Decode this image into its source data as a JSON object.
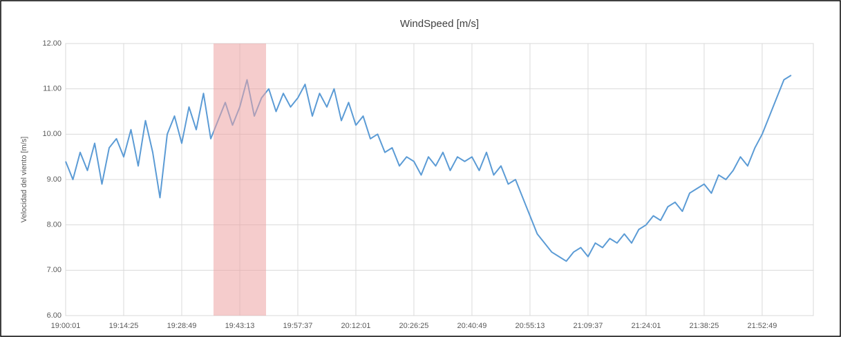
{
  "chart_data": {
    "type": "line",
    "title": "WindSpeed [m/s]",
    "y_label": "Velocidad del viento [m/s]",
    "x": [
      68401,
      68509,
      68617,
      68725,
      68833,
      68941,
      69049,
      69157,
      69265,
      69373,
      69481,
      69589,
      69697,
      69805,
      69913,
      70021,
      70129,
      70237,
      70345,
      70453,
      70561,
      70669,
      70777,
      70885,
      70993,
      71101,
      71209,
      71317,
      71425,
      71533,
      71641,
      71749,
      71857,
      71965,
      72073,
      72181,
      72289,
      72397,
      72505,
      72613,
      72721,
      72829,
      72937,
      73045,
      73153,
      73261,
      73369,
      73477,
      73585,
      73693,
      73801,
      73909,
      74017,
      74125,
      74233,
      74341,
      74449,
      74557,
      74665,
      74773,
      74881,
      74989,
      75097,
      75205,
      75313,
      75421,
      75529,
      75637,
      75745,
      75853,
      75961,
      76069,
      76177,
      76285,
      76393,
      76501,
      76609,
      76717,
      76825,
      76933,
      77041,
      77149,
      77257,
      77365,
      77473,
      77581,
      77689,
      77797,
      77905,
      78013,
      78121,
      78229,
      78337,
      78445,
      78553,
      78661,
      78769,
      78877,
      78985,
      79093,
      79201
    ],
    "series": [
      {
        "name": "WindSpeed",
        "color": "#5b9bd5",
        "values": [
          9.4,
          9.0,
          9.6,
          9.2,
          9.8,
          8.9,
          9.7,
          9.9,
          9.5,
          10.1,
          9.3,
          10.3,
          9.6,
          8.6,
          10.0,
          10.4,
          9.8,
          10.6,
          10.1,
          10.9,
          9.9,
          10.3,
          10.7,
          10.2,
          10.6,
          11.2,
          10.4,
          10.8,
          11.0,
          10.5,
          10.9,
          10.6,
          10.8,
          11.1,
          10.4,
          10.9,
          10.6,
          11.0,
          10.3,
          10.7,
          10.2,
          10.4,
          9.9,
          10.0,
          9.6,
          9.7,
          9.3,
          9.5,
          9.4,
          9.1,
          9.5,
          9.3,
          9.6,
          9.2,
          9.5,
          9.4,
          9.5,
          9.2,
          9.6,
          9.1,
          9.3,
          8.9,
          9.0,
          8.6,
          8.2,
          7.8,
          7.6,
          7.4,
          7.3,
          7.2,
          7.4,
          7.5,
          7.3,
          7.6,
          7.5,
          7.7,
          7.6,
          7.8,
          7.6,
          7.9,
          8.0,
          8.2,
          8.1,
          8.4,
          8.5,
          8.3,
          8.7,
          8.8,
          8.9,
          8.7,
          9.1,
          9.0,
          9.2,
          9.5,
          9.3,
          9.7,
          10.0,
          10.4,
          10.8,
          11.2,
          11.3
        ]
      }
    ],
    "xlim": [
      68401,
      79531
    ],
    "xticks": [
      {
        "value": 68401,
        "label": "19:00:01"
      },
      {
        "value": 69265,
        "label": "19:14:25"
      },
      {
        "value": 70129,
        "label": "19:28:49"
      },
      {
        "value": 70993,
        "label": "19:43:13"
      },
      {
        "value": 71857,
        "label": "19:57:37"
      },
      {
        "value": 72721,
        "label": "20:12:01"
      },
      {
        "value": 73585,
        "label": "20:26:25"
      },
      {
        "value": 74449,
        "label": "20:40:49"
      },
      {
        "value": 75313,
        "label": "20:55:13"
      },
      {
        "value": 76177,
        "label": "21:09:37"
      },
      {
        "value": 77041,
        "label": "21:24:01"
      },
      {
        "value": 77905,
        "label": "21:38:25"
      },
      {
        "value": 78769,
        "label": "21:52:49"
      }
    ],
    "ylim": [
      6,
      12
    ],
    "yticks": [
      {
        "value": 6,
        "label": "6.00"
      },
      {
        "value": 7,
        "label": "7.00"
      },
      {
        "value": 8,
        "label": "8.00"
      },
      {
        "value": 9,
        "label": "9.00"
      },
      {
        "value": 10,
        "label": "10.00"
      },
      {
        "value": 11,
        "label": "11.00"
      },
      {
        "value": 12,
        "label": "12.00"
      }
    ],
    "grid": true,
    "highlight": {
      "x0": 70602,
      "x1": 71384,
      "color": "#eca3a3"
    }
  }
}
